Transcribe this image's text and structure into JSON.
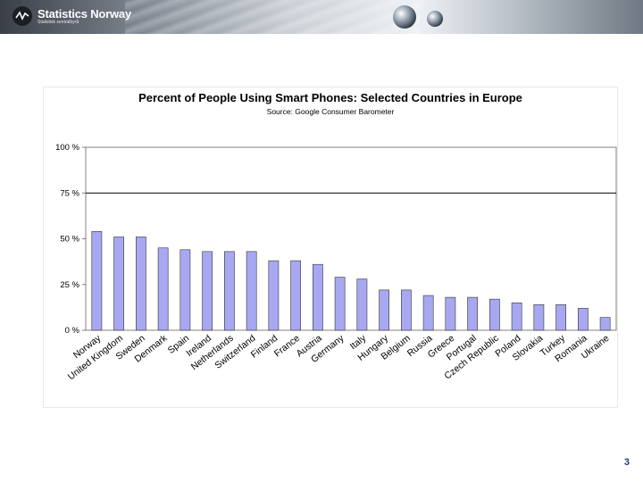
{
  "header": {
    "logo_name": "Statistics Norway",
    "logo_sub": "Statistisk sentralbyrå"
  },
  "page_number": "3",
  "colors": {
    "bar_fill": "#a8a8f2",
    "bar_stroke": "#333333",
    "plot_border": "#808080",
    "gridline": "#000000",
    "accent": "#1f3f7a"
  },
  "chart_data": {
    "type": "bar",
    "title": "Percent of People Using Smart Phones: Selected Countries in Europe",
    "subtitle": "Source: Google Consumer Barometer",
    "xlabel": "",
    "ylabel": "",
    "ylim": [
      0,
      100
    ],
    "yticks": [
      0,
      25,
      50,
      75,
      100
    ],
    "ytick_labels": [
      "0 %",
      "25 %",
      "50 %",
      "75 %",
      "100 %"
    ],
    "gridlines": [
      75
    ],
    "legend": "none",
    "categories": [
      "Norway",
      "United Kingdom",
      "Sweden",
      "Denmark",
      "Spain",
      "Ireland",
      "Netherlands",
      "Switzerland",
      "Finland",
      "France",
      "Austria",
      "Germany",
      "Italy",
      "Hungary",
      "Belgium",
      "Russia",
      "Greece",
      "Portugal",
      "Czech Republic",
      "Poland",
      "Slovakia",
      "Turkey",
      "Romania",
      "Ukraine"
    ],
    "values": [
      54,
      51,
      51,
      45,
      44,
      43,
      43,
      43,
      38,
      38,
      36,
      29,
      28,
      22,
      22,
      19,
      18,
      18,
      17,
      15,
      14,
      14,
      12,
      7
    ]
  }
}
